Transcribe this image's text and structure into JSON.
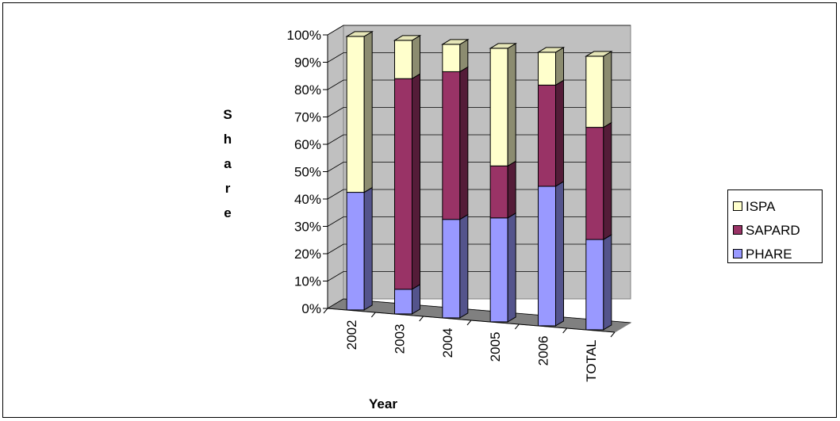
{
  "chart_data": {
    "type": "bar",
    "subtype": "stacked-percent-3d",
    "title": "",
    "xlabel": "Year",
    "ylabel": "Share",
    "categories": [
      "2002",
      "2003",
      "2004",
      "2005",
      "2006",
      "TOTAL"
    ],
    "series": [
      {
        "name": "PHARE",
        "values": [
          43,
          9,
          36,
          38,
          51,
          33
        ],
        "color": "#9999ff"
      },
      {
        "name": "SAPARD",
        "values": [
          0,
          77,
          54,
          19,
          37,
          41
        ],
        "color": "#993366"
      },
      {
        "name": "ISPA",
        "values": [
          57,
          14,
          10,
          43,
          12,
          26
        ],
        "color": "#ffffcc"
      }
    ],
    "yticks": [
      "0%",
      "10%",
      "20%",
      "30%",
      "40%",
      "50%",
      "60%",
      "70%",
      "80%",
      "90%",
      "100%"
    ],
    "ylim": [
      0,
      100
    ],
    "grid": true,
    "legend_position": "right",
    "legend_order": [
      "ISPA",
      "SAPARD",
      "PHARE"
    ]
  }
}
